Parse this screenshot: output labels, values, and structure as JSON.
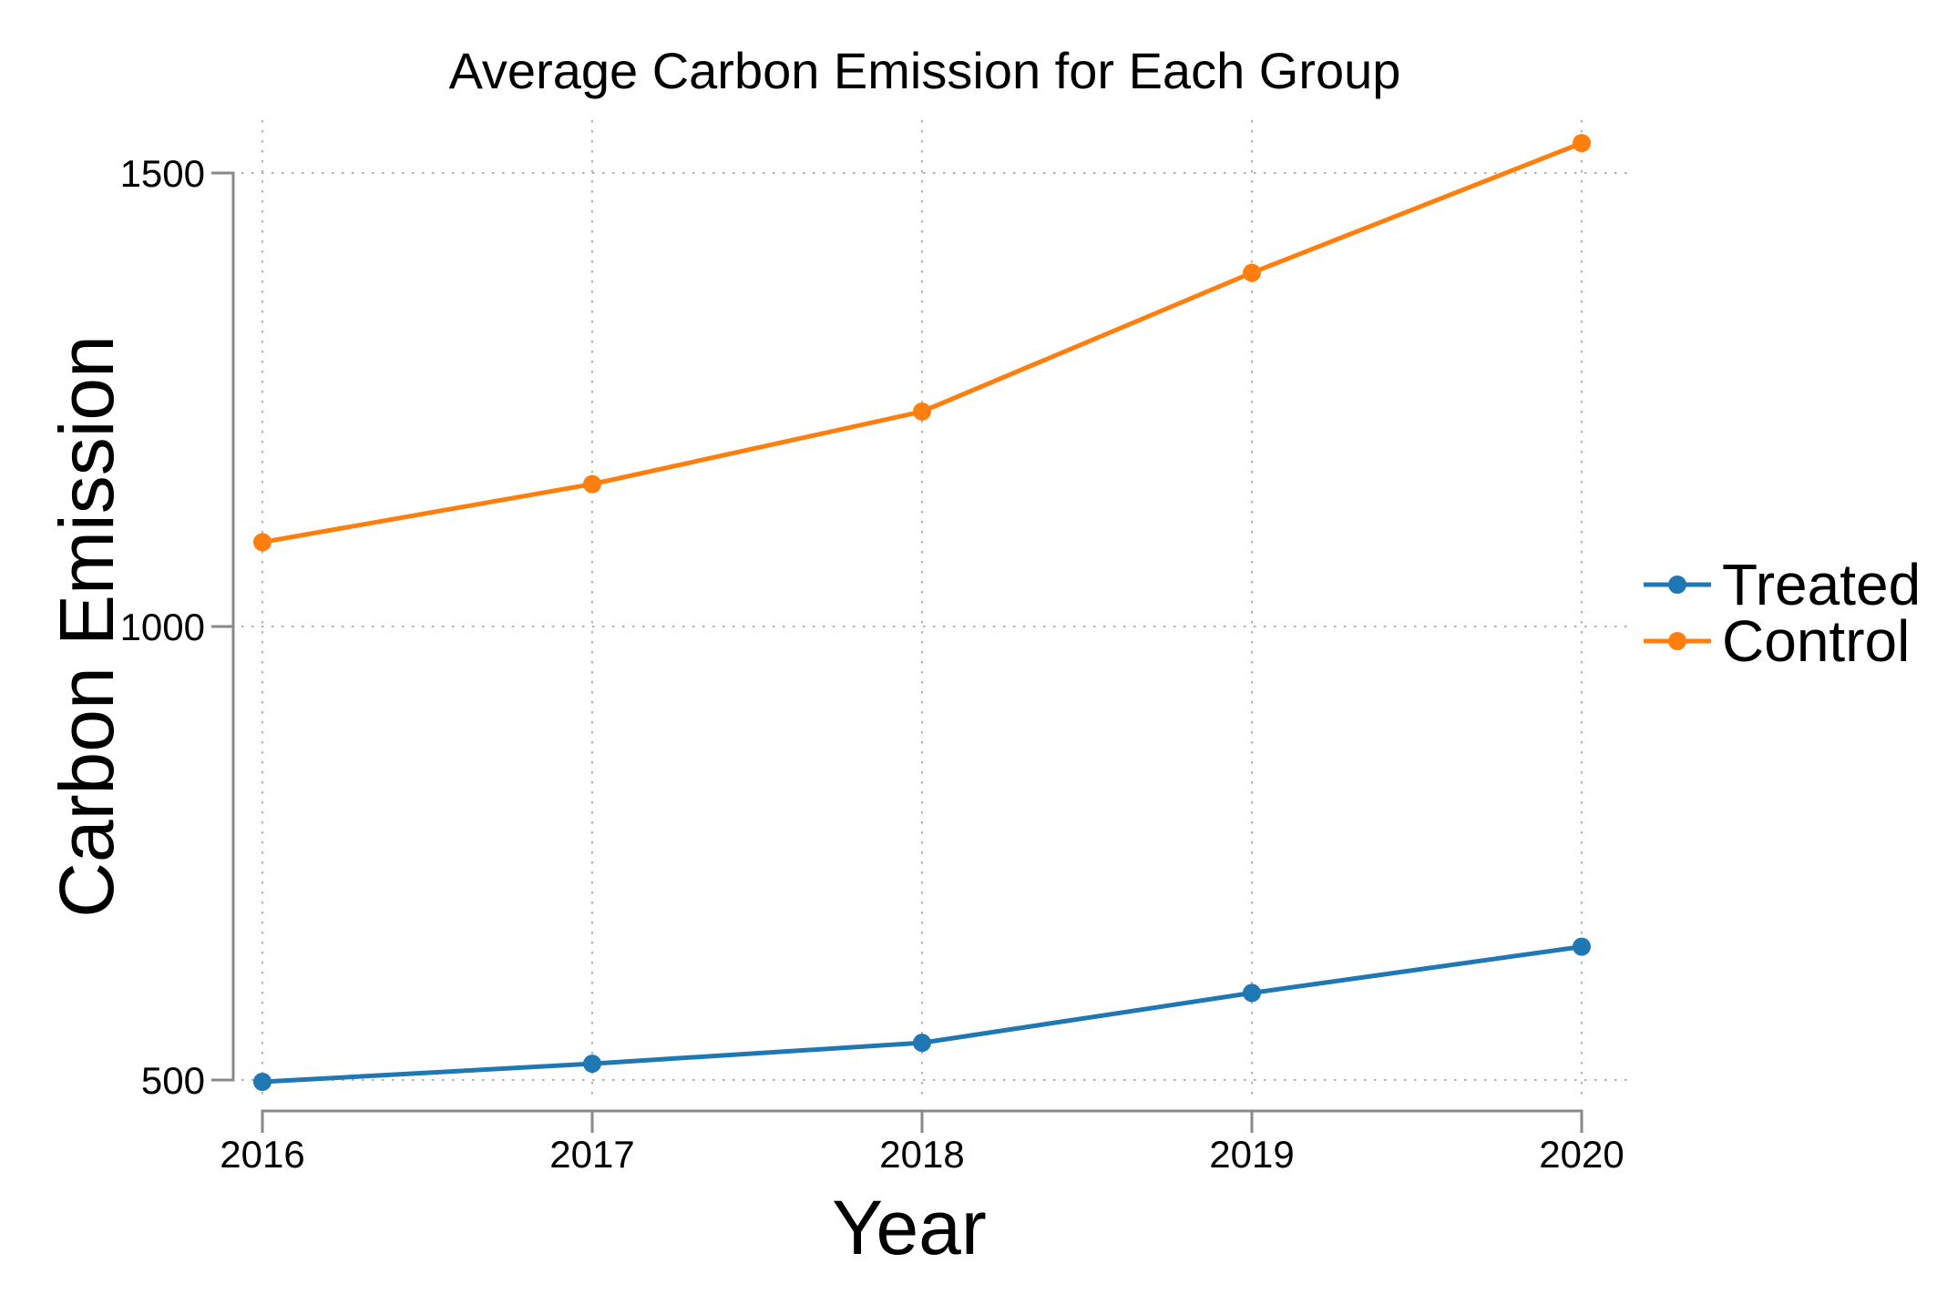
{
  "chart_data": {
    "type": "line",
    "title": "Average Carbon Emission for Each Group",
    "xlabel": "Year",
    "ylabel": "Carbon Emission",
    "x": [
      2016,
      2017,
      2018,
      2019,
      2020
    ],
    "series": [
      {
        "name": "Treated",
        "color": "#1f77b4",
        "values": [
          498,
          518,
          541,
          596,
          647
        ]
      },
      {
        "name": "Control",
        "color": "#ff7f0e",
        "values": [
          1093,
          1157,
          1237,
          1390,
          1533
        ]
      }
    ],
    "xticks": [
      "2016",
      "2017",
      "2018",
      "2019",
      "2020"
    ],
    "yticks": [
      500,
      1000,
      1500
    ],
    "ylim": [
      476,
      1558
    ],
    "xlim": [
      2015.85,
      2020.15
    ],
    "grid": "dotted",
    "legend_position": "right-outside",
    "colors": {
      "axis": "#898989",
      "gridline": "#b0b0b0",
      "text": "#000000",
      "background": "#ffffff"
    }
  }
}
